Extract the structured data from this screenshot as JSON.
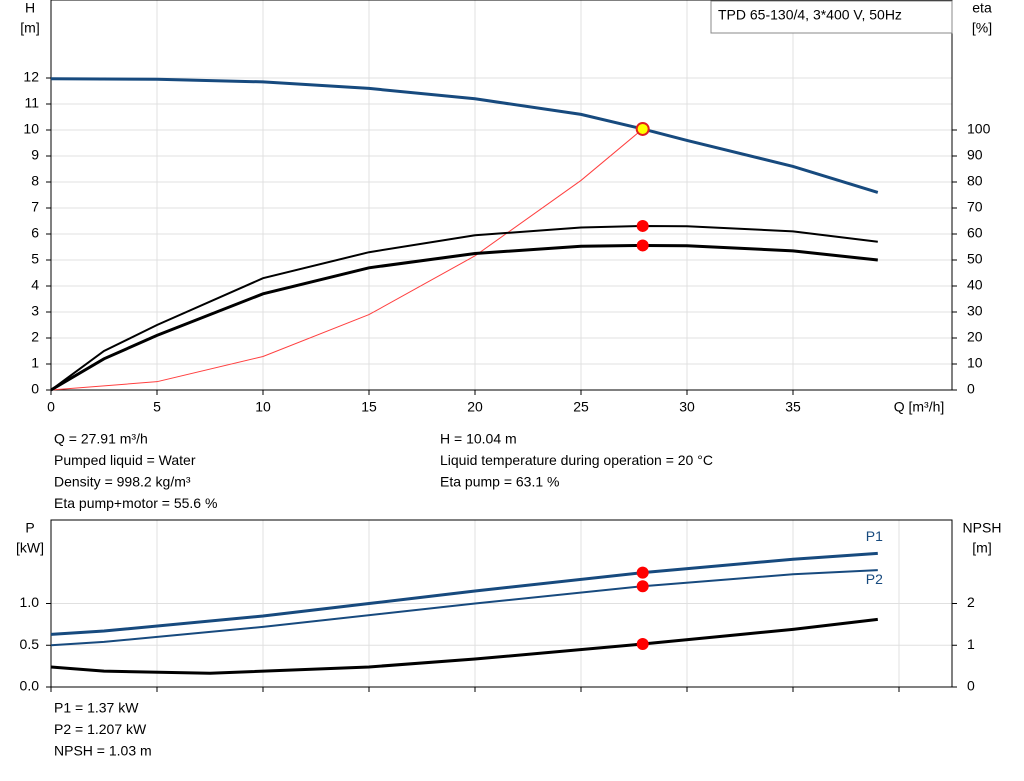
{
  "chart_data": [
    {
      "type": "line",
      "legend_text": "TPD 65-130/4, 3*400 V, 50Hz",
      "ylabel": [
        "H",
        "[m]"
      ],
      "y2label": [
        "eta",
        "[%]"
      ],
      "xlabel": "Q [m³/h]",
      "xlim": [
        0,
        42.5
      ],
      "xticks": [
        0,
        5,
        10,
        15,
        20,
        25,
        30,
        35
      ],
      "ylim": [
        0,
        15
      ],
      "yticks": [
        0,
        1,
        2,
        3,
        4,
        5,
        6,
        7,
        8,
        9,
        10,
        11,
        12
      ],
      "y2lim": [
        0,
        150
      ],
      "y2ticks": [
        0,
        10,
        20,
        30,
        40,
        50,
        60,
        70,
        80,
        90,
        100
      ],
      "grid": true,
      "series": [
        {
          "color": "#ff4040",
          "line_width": 1,
          "axis": "y",
          "x": [
            0,
            5,
            10,
            15,
            20,
            25,
            27.91
          ],
          "values": [
            0,
            0.32,
            1.29,
            2.9,
            5.16,
            8.06,
            10.04
          ]
        },
        {
          "color": "#000000",
          "line_width": 2,
          "axis": "y2",
          "x": [
            0,
            2.5,
            5,
            10,
            15,
            20,
            25,
            27.91,
            30,
            35,
            39
          ],
          "values": [
            0,
            15,
            25,
            43,
            53,
            59.5,
            62.5,
            63.1,
            63,
            61,
            57
          ]
        },
        {
          "color": "#000000",
          "line_width": 3,
          "axis": "y2",
          "x": [
            0,
            2.5,
            5,
            10,
            15,
            20,
            25,
            27.91,
            30,
            35,
            39
          ],
          "values": [
            0,
            12,
            21,
            37,
            47,
            52.5,
            55.3,
            55.6,
            55.5,
            53.5,
            50
          ]
        },
        {
          "color": "#174a7e",
          "line_width": 3,
          "axis": "y",
          "x": [
            0,
            5,
            10,
            15,
            20,
            25,
            27.91,
            30,
            35,
            39
          ],
          "values": [
            11.97,
            11.95,
            11.85,
            11.6,
            11.2,
            10.6,
            10.04,
            9.6,
            8.6,
            7.6
          ]
        }
      ],
      "points": [
        {
          "x": 27.91,
          "y": 63.1,
          "axis": "y2",
          "color": "#ff0000"
        },
        {
          "x": 27.91,
          "y": 55.6,
          "axis": "y2",
          "color": "#ff0000"
        },
        {
          "x": 27.91,
          "y": 10.04,
          "axis": "y",
          "color": "#ffff00"
        }
      ],
      "info_left": [
        "Q = 27.91 m³/h",
        "Pumped liquid = Water",
        "Density = 998.2 kg/m³",
        "Eta pump+motor = 55.6 %"
      ],
      "info_right": [
        "H = 10.04 m",
        "Liquid temperature during operation = 20 °C",
        "Eta pump = 63.1 %"
      ]
    },
    {
      "type": "line",
      "ylabel": [
        "P",
        "[kW]"
      ],
      "y2label": [
        "NPSH",
        "[m]"
      ],
      "xlim": [
        0,
        42.5
      ],
      "xticks": [
        0,
        5,
        10,
        15,
        20,
        25,
        30,
        35,
        40
      ],
      "ylim": [
        0,
        2
      ],
      "yticks": [
        {
          "value": 0,
          "label": "0.0"
        },
        {
          "value": 0.5,
          "label": "0.5"
        },
        {
          "value": 1,
          "label": "1.0"
        }
      ],
      "y2lim": [
        0,
        4
      ],
      "y2ticks": [
        0,
        1,
        2
      ],
      "grid": true,
      "series": [
        {
          "name": "P1",
          "color": "#174a7e",
          "line_width": 3,
          "axis": "y",
          "x": [
            0,
            2.5,
            10,
            15,
            20,
            27.91,
            35,
            39
          ],
          "values": [
            0.63,
            0.67,
            0.85,
            1.0,
            1.15,
            1.37,
            1.53,
            1.6
          ]
        },
        {
          "name": "P2",
          "color": "#174a7e",
          "line_width": 2,
          "axis": "y",
          "x": [
            0,
            2.5,
            10,
            20,
            27.91,
            35,
            39
          ],
          "values": [
            0.5,
            0.54,
            0.72,
            1.0,
            1.207,
            1.35,
            1.4
          ]
        },
        {
          "color": "#000000",
          "line_width": 3,
          "axis": "y2",
          "x": [
            0,
            2.5,
            7.5,
            15,
            20,
            27.91,
            35,
            39
          ],
          "values": [
            0.48,
            0.38,
            0.33,
            0.48,
            0.67,
            1.03,
            1.38,
            1.62
          ]
        }
      ],
      "points": [
        {
          "x": 27.91,
          "y": 1.37,
          "axis": "y",
          "color": "#ff0000"
        },
        {
          "x": 27.91,
          "y": 1.207,
          "axis": "y",
          "color": "#ff0000"
        },
        {
          "x": 27.91,
          "y": 1.03,
          "axis": "y2",
          "color": "#ff0000"
        }
      ],
      "info_left": [
        "P1 = 1.37 kW",
        "P2 = 1.207 kW",
        "NPSH = 1.03 m"
      ]
    }
  ]
}
